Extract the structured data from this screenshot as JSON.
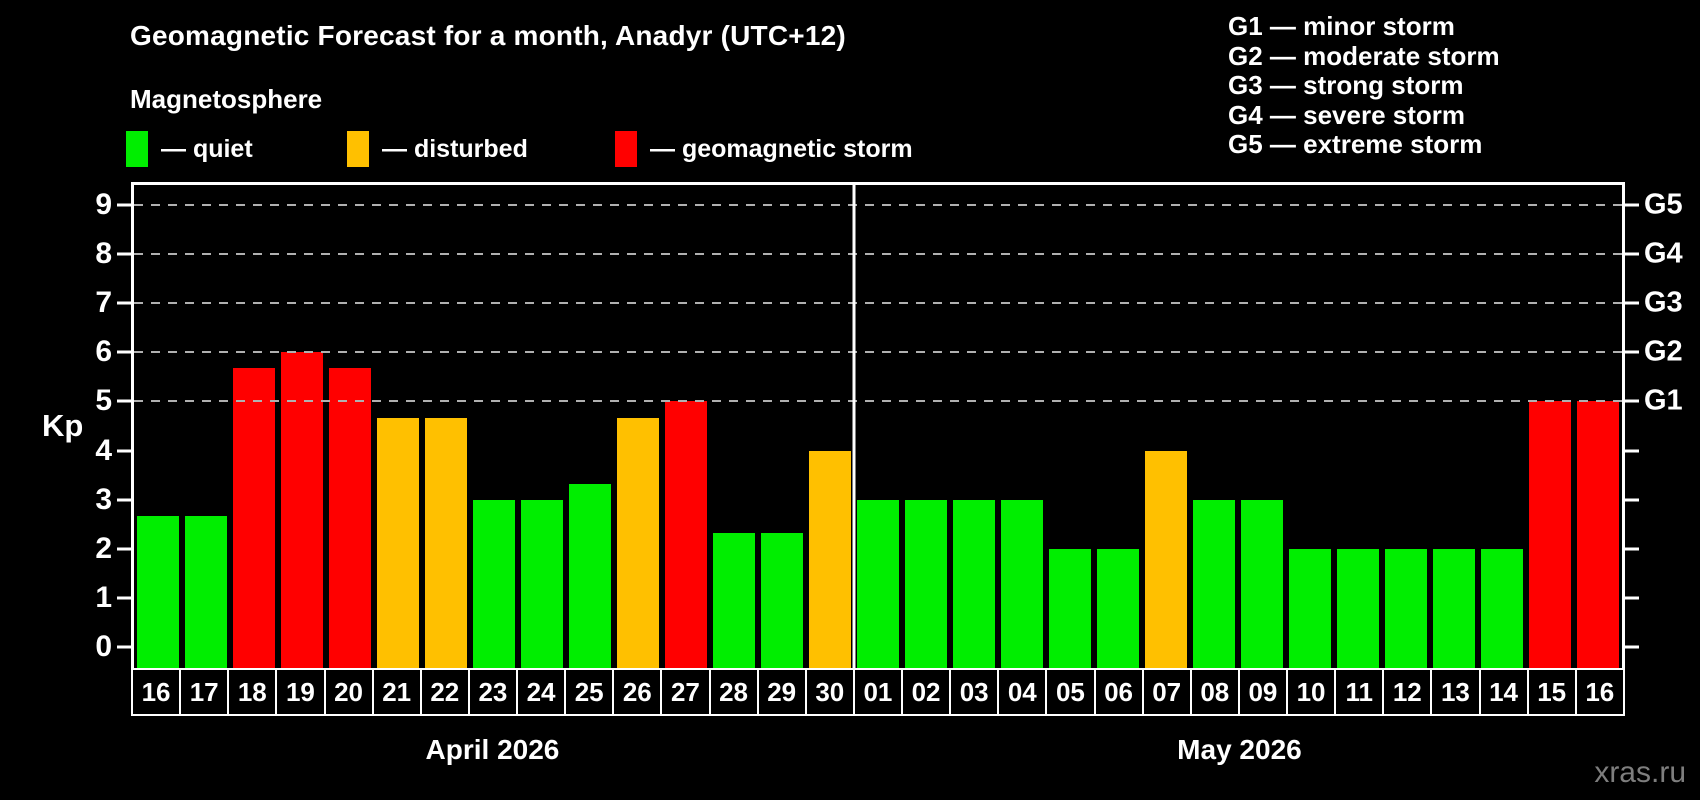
{
  "title": "Geomagnetic Forecast for a month, Anadyr (UTC+12)",
  "legend": {
    "heading": "Magnetosphere",
    "items": [
      {
        "key": "quiet",
        "label": "— quiet",
        "color": "#00ee00"
      },
      {
        "key": "disturbed",
        "label": "— disturbed",
        "color": "#ffc000"
      },
      {
        "key": "storm",
        "label": "— geomagnetic storm",
        "color": "#ff0000"
      }
    ]
  },
  "storm_scale": [
    "G1 — minor storm",
    "G2 — moderate storm",
    "G3 — strong storm",
    "G4 — severe storm",
    "G5 — extreme storm"
  ],
  "y_axis": {
    "label": "Kp",
    "ticks": [
      "0",
      "1",
      "2",
      "3",
      "4",
      "5",
      "6",
      "7",
      "8",
      "9"
    ]
  },
  "watermark": "xras.ru",
  "chart_data": {
    "type": "bar",
    "title": "Geomagnetic Forecast for a month, Anadyr (UTC+12)",
    "xlabel": "",
    "ylabel": "Kp",
    "ylim": [
      0,
      9
    ],
    "plot_y_range": [
      -0.42,
      9.4
    ],
    "grid": "dashed horizontal at storm levels",
    "gridlines_kp": [
      5,
      6,
      7,
      8,
      9
    ],
    "axis_ticks_kp": [
      0,
      1,
      2,
      3,
      4,
      5,
      6,
      7,
      8,
      9
    ],
    "g_scale_ticks": [
      {
        "kp": 5,
        "label": "G1"
      },
      {
        "kp": 6,
        "label": "G2"
      },
      {
        "kp": 7,
        "label": "G3"
      },
      {
        "kp": 8,
        "label": "G4"
      },
      {
        "kp": 9,
        "label": "G5"
      }
    ],
    "colors": {
      "quiet": "#00ee00",
      "disturbed": "#ffc000",
      "storm": "#ff0000"
    },
    "legend_position": "top-left",
    "months": [
      {
        "label": "April 2026",
        "days": [
          "16",
          "17",
          "18",
          "19",
          "20",
          "21",
          "22",
          "23",
          "24",
          "25",
          "26",
          "27",
          "28",
          "29",
          "30"
        ],
        "values": [
          2.67,
          2.67,
          5.67,
          6.0,
          5.67,
          4.67,
          4.67,
          3.0,
          3.0,
          3.33,
          4.67,
          5.0,
          2.33,
          2.33,
          4.0
        ],
        "levels": [
          "quiet",
          "quiet",
          "storm",
          "storm",
          "storm",
          "disturbed",
          "disturbed",
          "quiet",
          "quiet",
          "quiet",
          "disturbed",
          "storm",
          "quiet",
          "quiet",
          "disturbed"
        ]
      },
      {
        "label": "May 2026",
        "days": [
          "01",
          "02",
          "03",
          "04",
          "05",
          "06",
          "07",
          "08",
          "09",
          "10",
          "11",
          "12",
          "13",
          "14",
          "15",
          "16"
        ],
        "values": [
          3.0,
          3.0,
          3.0,
          3.0,
          2.0,
          2.0,
          4.0,
          3.0,
          3.0,
          2.0,
          2.0,
          2.0,
          2.0,
          2.0,
          5.0,
          5.0
        ],
        "levels": [
          "quiet",
          "quiet",
          "quiet",
          "quiet",
          "quiet",
          "quiet",
          "disturbed",
          "quiet",
          "quiet",
          "quiet",
          "quiet",
          "quiet",
          "quiet",
          "quiet",
          "storm",
          "storm"
        ]
      }
    ]
  }
}
